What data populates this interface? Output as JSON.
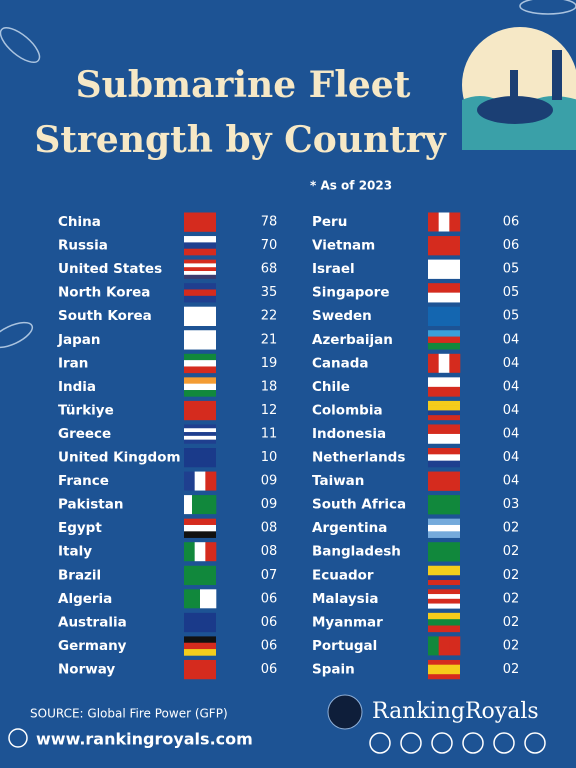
{
  "header": {
    "title_lines": [
      "Submarine Fleet",
      "Strength by Country"
    ],
    "note": "* As of 2023"
  },
  "rows": [
    {
      "country": "China",
      "value": "78"
    },
    {
      "country": "Russia",
      "value": "70"
    },
    {
      "country": "United States",
      "value": "68"
    },
    {
      "country": "North Korea",
      "value": "35"
    },
    {
      "country": "South Korea",
      "value": "22"
    },
    {
      "country": "Japan",
      "value": "21"
    },
    {
      "country": "Iran",
      "value": "19"
    },
    {
      "country": "India",
      "value": "18"
    },
    {
      "country": "Türkiye",
      "value": "12"
    },
    {
      "country": "Greece",
      "value": "11"
    },
    {
      "country": "United Kingdom",
      "value": "10"
    },
    {
      "country": "France",
      "value": "09"
    },
    {
      "country": "Pakistan",
      "value": "09"
    },
    {
      "country": "Egypt",
      "value": "08"
    },
    {
      "country": "Italy",
      "value": "08"
    },
    {
      "country": "Brazil",
      "value": "07"
    },
    {
      "country": "Algeria",
      "value": "06"
    },
    {
      "country": "Australia",
      "value": "06"
    },
    {
      "country": "Germany",
      "value": "06"
    },
    {
      "country": "Norway",
      "value": "06"
    },
    {
      "country": "Peru",
      "value": "06"
    },
    {
      "country": "Vietnam",
      "value": "06"
    },
    {
      "country": "Israel",
      "value": "05"
    },
    {
      "country": "Singapore",
      "value": "05"
    },
    {
      "country": "Sweden",
      "value": "05"
    },
    {
      "country": "Azerbaijan",
      "value": "04"
    },
    {
      "country": "Canada",
      "value": "04"
    },
    {
      "country": "Chile",
      "value": "04"
    },
    {
      "country": "Colombia",
      "value": "04"
    },
    {
      "country": "Indonesia",
      "value": "04"
    },
    {
      "country": "Netherlands",
      "value": "04"
    },
    {
      "country": "Taiwan",
      "value": "04"
    },
    {
      "country": "South Africa",
      "value": "03"
    },
    {
      "country": "Argentina",
      "value": "02"
    },
    {
      "country": "Bangladesh",
      "value": "02"
    },
    {
      "country": "Ecuador",
      "value": "02"
    },
    {
      "country": "Malaysia",
      "value": "02"
    },
    {
      "country": "Myanmar",
      "value": "02"
    },
    {
      "country": "Portugal",
      "value": "02"
    },
    {
      "country": "Spain",
      "value": "02"
    }
  ],
  "footer": {
    "source": "SOURCE: Global Fire Power (GFP)",
    "website": "www.rankingroyals.com",
    "brand": "RankingRoyals"
  }
}
